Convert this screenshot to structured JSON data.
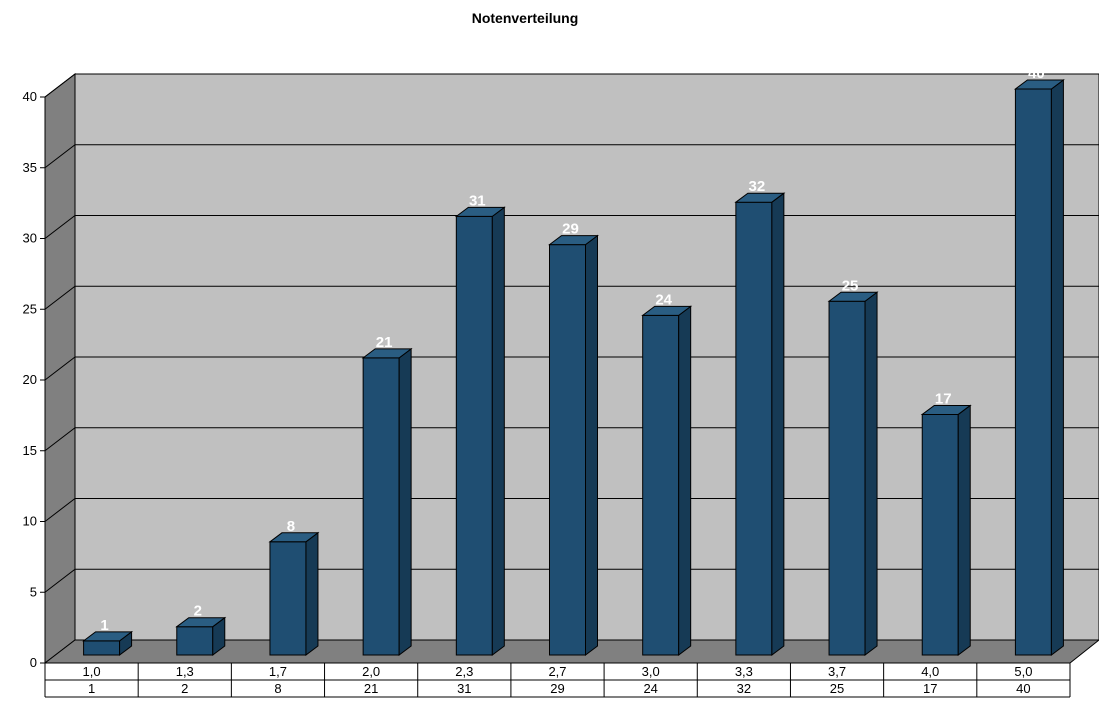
{
  "chart_data": {
    "type": "bar",
    "title": "Notenverteilung",
    "categories": [
      "1,0",
      "1,3",
      "1,7",
      "2,0",
      "2,3",
      "2,7",
      "3,0",
      "3,3",
      "3,7",
      "4,0",
      "5,0"
    ],
    "values": [
      1,
      2,
      8,
      21,
      31,
      29,
      24,
      32,
      25,
      17,
      40
    ],
    "table_row": [
      "1",
      "2",
      "8",
      "21",
      "31",
      "29",
      "24",
      "32",
      "25",
      "17",
      "40"
    ],
    "y_ticks": [
      "0",
      "5",
      "10",
      "15",
      "20",
      "25",
      "30",
      "35",
      "40"
    ],
    "ylim": [
      0,
      40
    ],
    "grid": true,
    "three_d": true,
    "data_labels": true,
    "legend": "none",
    "colors": {
      "bar_front": "#1f4e72",
      "bar_side": "#163a55",
      "bar_top": "#2a5d82",
      "plot_back": "#c0c0c0",
      "plot_left_wall": "#808080",
      "plot_floor": "#808080",
      "label_color": "#ffffff"
    }
  }
}
